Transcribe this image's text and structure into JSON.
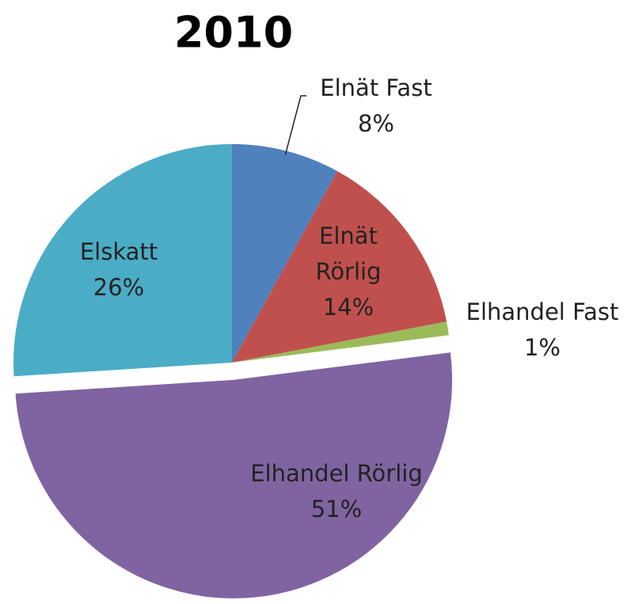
{
  "chart_data": {
    "type": "pie",
    "title": "2010",
    "categories": [
      "Elnät Fast",
      "Elnät Rörlig",
      "Elhandel Fast",
      "Elhandel Rörlig",
      "Elskatt"
    ],
    "values": [
      8,
      14,
      1,
      51,
      26
    ],
    "value_labels": [
      "8%",
      "14%",
      "1%",
      "51%",
      "26%"
    ],
    "colors": [
      "#4f81bd",
      "#c0504d",
      "#9bbb59",
      "#8064a2",
      "#4bacc6"
    ],
    "exploded": [
      "Elhandel Rörlig"
    ]
  }
}
